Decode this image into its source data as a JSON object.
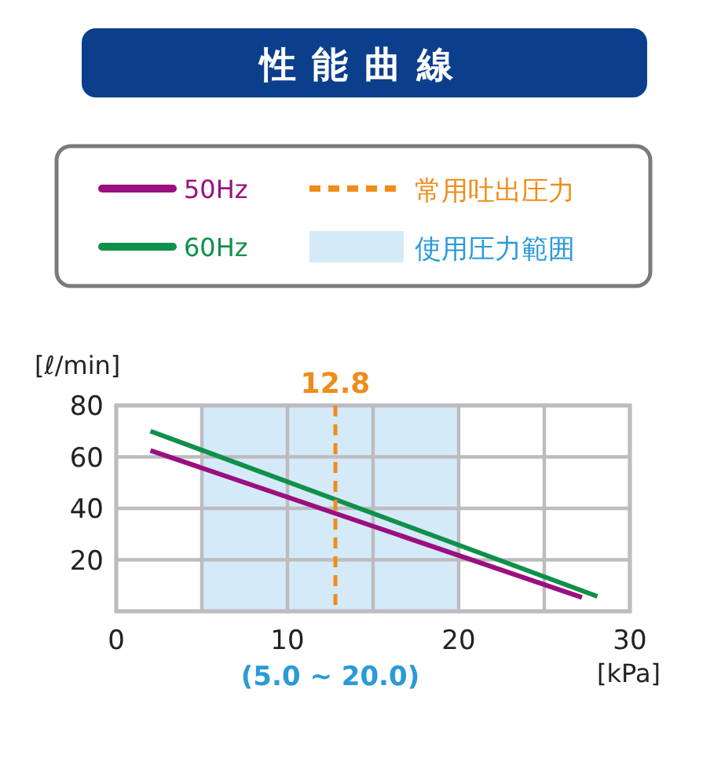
{
  "chart_data": {
    "type": "line",
    "title": "性能曲線",
    "xlabel": "[kPa]",
    "ylabel": "[ℓ/min]",
    "xlim": [
      0,
      30
    ],
    "ylim": [
      0,
      80
    ],
    "xticks": [
      0,
      {
        "value": 5,
        "label": null
      },
      10,
      {
        "value": 15,
        "label": null
      },
      20,
      {
        "value": 25,
        "label": null
      },
      30
    ],
    "yticks": [
      {
        "value": 0,
        "label": null
      },
      20,
      40,
      60,
      80
    ],
    "grid": true,
    "legend": "top",
    "series": [
      {
        "name": "50Hz",
        "color": "#9b0f7f",
        "x": [
          2,
          27.2
        ],
        "values": [
          62.5,
          5.4
        ]
      },
      {
        "name": "60Hz",
        "color": "#10904a",
        "x": [
          2,
          28.1
        ],
        "values": [
          70,
          5.8
        ]
      }
    ],
    "ref_lines": [
      {
        "axis": "x",
        "value": 12.8,
        "label": "常用吐出圧力",
        "color": "#ef8c1a",
        "line_style": "dashed"
      }
    ],
    "bands": [
      {
        "axis": "x",
        "from": 5,
        "to": 20,
        "label": "使用圧力範囲",
        "color": "#d5eaf8"
      }
    ],
    "annotations": [
      {
        "text": "12.8",
        "x": 12.8,
        "y": 80
      },
      "(5.0 ~ 20.0)"
    ]
  }
}
